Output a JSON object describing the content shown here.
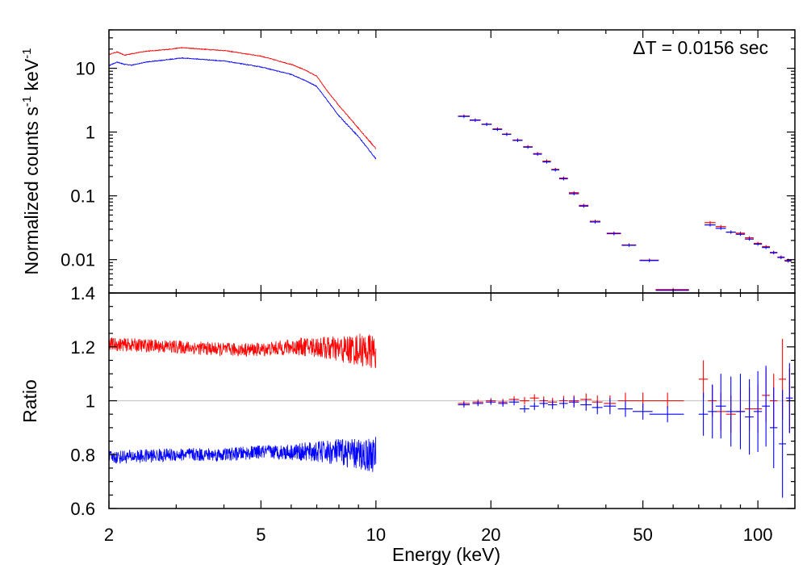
{
  "chart_data": [
    {
      "type": "scatter",
      "panel": "spectrum",
      "annotation": "ΔT = 0.0156 sec",
      "ylabel_parts": {
        "base": "Normalized counts s",
        "exp1": "-1",
        "mid": " keV",
        "exp2": "-1"
      },
      "x_scale": "log",
      "y_scale": "log",
      "xlim": [
        2,
        125
      ],
      "ylim": [
        0.003,
        40
      ],
      "y_tick_values": [
        10,
        1,
        0.1,
        0.01
      ],
      "y_tick_labels": [
        "10",
        "1",
        "0.1",
        "0.01"
      ],
      "series": [
        {
          "color": "#ff0000",
          "style": "continuous",
          "x": [
            2.0,
            2.1,
            2.2,
            2.3,
            2.5,
            2.8,
            3.1,
            3.5,
            4.0,
            5.0,
            6.0,
            6.5,
            7.0,
            7.5,
            8.0,
            9.0,
            10.0
          ],
          "y": [
            16.5,
            18,
            16,
            17,
            18.5,
            19.5,
            21,
            20,
            19,
            15.5,
            11.5,
            9.5,
            7.5,
            4.2,
            2.6,
            1.15,
            0.55
          ]
        },
        {
          "color": "#0000ff",
          "style": "continuous",
          "x": [
            2.0,
            2.1,
            2.2,
            2.3,
            2.5,
            2.8,
            3.1,
            3.5,
            4.0,
            5.0,
            6.0,
            6.5,
            7.0,
            7.5,
            8.0,
            9.0,
            10.0
          ],
          "y": [
            11,
            12.5,
            11.5,
            11.2,
            12.5,
            13.5,
            14.5,
            13.8,
            13,
            10.5,
            8.0,
            6.5,
            5.2,
            3.0,
            1.8,
            0.85,
            0.38
          ]
        },
        {
          "color": "#ff0000",
          "style": "binned",
          "x": [
            17,
            18.2,
            19.5,
            20.8,
            22,
            23.5,
            25,
            26.5,
            28,
            29.5,
            31,
            33,
            35,
            37.5,
            42,
            46,
            52,
            60,
            75,
            80,
            85,
            90,
            95,
            100,
            105,
            110,
            115,
            120
          ],
          "xerr": [
            0.6,
            0.6,
            0.6,
            0.6,
            0.6,
            0.7,
            0.7,
            0.7,
            0.7,
            0.7,
            0.8,
            1.0,
            1.0,
            1.2,
            1.8,
            2.0,
            3.0,
            6.0,
            2.5,
            2.5,
            2.5,
            2.5,
            2.5,
            2.5,
            2.5,
            2.5,
            2.5,
            2.5
          ],
          "y": [
            1.78,
            1.55,
            1.33,
            1.12,
            0.93,
            0.75,
            0.59,
            0.46,
            0.35,
            0.26,
            0.19,
            0.112,
            0.071,
            0.04,
            0.026,
            0.017,
            0.0098,
            0.0034,
            0.038,
            0.033,
            0.027,
            0.026,
            0.022,
            0.018,
            0.016,
            0.013,
            0.011,
            0.0098
          ]
        },
        {
          "color": "#0000ff",
          "style": "binned",
          "x": [
            17,
            18.2,
            19.5,
            20.8,
            22,
            23.5,
            25,
            26.5,
            28,
            29.5,
            31,
            33,
            35,
            37.5,
            42,
            46,
            52,
            60,
            75,
            80,
            85,
            90,
            95,
            100,
            105,
            110,
            115,
            120
          ],
          "xerr": [
            0.6,
            0.6,
            0.6,
            0.6,
            0.6,
            0.7,
            0.7,
            0.7,
            0.7,
            0.7,
            0.8,
            1.0,
            1.0,
            1.2,
            1.8,
            2.0,
            3.0,
            6.0,
            2.5,
            2.5,
            2.5,
            2.5,
            2.5,
            2.5,
            2.5,
            2.5,
            2.5,
            2.5
          ],
          "y": [
            1.76,
            1.53,
            1.32,
            1.1,
            0.92,
            0.74,
            0.58,
            0.45,
            0.34,
            0.255,
            0.185,
            0.108,
            0.069,
            0.039,
            0.0255,
            0.0168,
            0.0097,
            0.0033,
            0.035,
            0.031,
            0.027,
            0.025,
            0.021,
            0.0175,
            0.0155,
            0.0128,
            0.0108,
            0.0095
          ]
        }
      ]
    },
    {
      "type": "scatter",
      "panel": "ratio",
      "ylabel": "Ratio",
      "xlabel": "Energy (keV)",
      "x_scale": "log",
      "xlim": [
        2,
        125
      ],
      "ylim": [
        0.6,
        1.4
      ],
      "reference_line": 1,
      "y_tick_values": [
        1.4,
        1.2,
        1,
        0.8,
        0.6
      ],
      "y_tick_labels": [
        "1.4",
        "1.2",
        "1",
        "0.8",
        "0.6"
      ],
      "x_tick_values": [
        2,
        5,
        10,
        20,
        50,
        100
      ],
      "x_tick_labels": [
        "2",
        "5",
        "10",
        "20",
        "50",
        "100"
      ],
      "series": [
        {
          "color": "#ff0000",
          "style": "continuous",
          "x": [
            2,
            3,
            4,
            5,
            6,
            7,
            8,
            9,
            10
          ],
          "y": [
            1.21,
            1.2,
            1.19,
            1.19,
            1.2,
            1.2,
            1.19,
            1.19,
            1.18
          ],
          "noise": [
            0.025,
            0.025,
            0.025,
            0.025,
            0.03,
            0.04,
            0.05,
            0.06,
            0.07
          ]
        },
        {
          "color": "#0000ff",
          "style": "continuous",
          "x": [
            2,
            3,
            4,
            5,
            6,
            7,
            8,
            9,
            10
          ],
          "y": [
            0.79,
            0.8,
            0.8,
            0.81,
            0.81,
            0.81,
            0.81,
            0.8,
            0.8
          ],
          "noise": [
            0.025,
            0.025,
            0.025,
            0.025,
            0.03,
            0.04,
            0.05,
            0.06,
            0.07
          ]
        },
        {
          "color": "#ff0000",
          "style": "binned",
          "x": [
            17,
            18.5,
            20,
            21.5,
            23,
            24.5,
            26,
            27.5,
            29,
            31,
            33,
            35.5,
            38,
            41,
            45,
            50,
            58,
            72,
            76,
            80,
            85,
            90,
            95,
            100,
            105,
            110,
            116,
            121
          ],
          "xerr": [
            0.6,
            0.6,
            0.6,
            0.6,
            0.7,
            0.7,
            0.7,
            0.7,
            0.8,
            0.8,
            1.0,
            1.2,
            1.2,
            1.5,
            2.0,
            3.0,
            6.0,
            2.0,
            2.0,
            2.5,
            2.5,
            2.5,
            2.5,
            2.5,
            2.5,
            2.5,
            2.5,
            2.5
          ],
          "y": [
            0.99,
            0.995,
            1.0,
            0.995,
            1.005,
            1.0,
            1.01,
            1.0,
            0.995,
            1.0,
            1.0,
            1.005,
            0.995,
            0.99,
            1.0,
            1.0,
            1.0,
            1.08,
            1.0,
            0.96,
            0.95,
            0.96,
            0.97,
            0.97,
            1.02,
            1.0,
            1.08,
            1.0
          ],
          "yerr": [
            0.01,
            0.01,
            0.01,
            0.012,
            0.012,
            0.014,
            0.014,
            0.016,
            0.016,
            0.018,
            0.02,
            0.022,
            0.025,
            0.03,
            0.03,
            0.03,
            0.03,
            0.07,
            0.06,
            0.07,
            0.07,
            0.08,
            0.08,
            0.09,
            0.1,
            0.1,
            0.15,
            0.12
          ]
        },
        {
          "color": "#0000ff",
          "style": "binned",
          "x": [
            17,
            18.5,
            20,
            21.5,
            23,
            24.5,
            26,
            27.5,
            29,
            31,
            33,
            35.5,
            38,
            41,
            45,
            50,
            58,
            72,
            76,
            80,
            85,
            90,
            95,
            100,
            105,
            110,
            116,
            121
          ],
          "xerr": [
            0.6,
            0.6,
            0.6,
            0.6,
            0.7,
            0.7,
            0.7,
            0.7,
            0.8,
            0.8,
            1.0,
            1.2,
            1.2,
            1.5,
            2.0,
            3.0,
            6.0,
            2.0,
            2.0,
            2.5,
            2.5,
            2.5,
            2.5,
            2.5,
            2.5,
            2.5,
            2.5,
            2.5
          ],
          "y": [
            0.985,
            0.99,
            0.995,
            0.99,
            0.995,
            0.97,
            0.98,
            0.99,
            0.985,
            0.99,
            0.995,
            0.985,
            0.975,
            0.98,
            0.97,
            0.96,
            0.95,
            0.95,
            0.96,
            0.98,
            0.96,
            0.96,
            0.94,
            0.96,
            0.98,
            0.9,
            0.84,
            1.01
          ],
          "yerr": [
            0.01,
            0.01,
            0.01,
            0.012,
            0.012,
            0.014,
            0.014,
            0.016,
            0.016,
            0.018,
            0.02,
            0.022,
            0.025,
            0.03,
            0.03,
            0.03,
            0.03,
            0.08,
            0.1,
            0.12,
            0.13,
            0.14,
            0.14,
            0.15,
            0.15,
            0.15,
            0.2,
            0.13
          ]
        }
      ]
    }
  ]
}
